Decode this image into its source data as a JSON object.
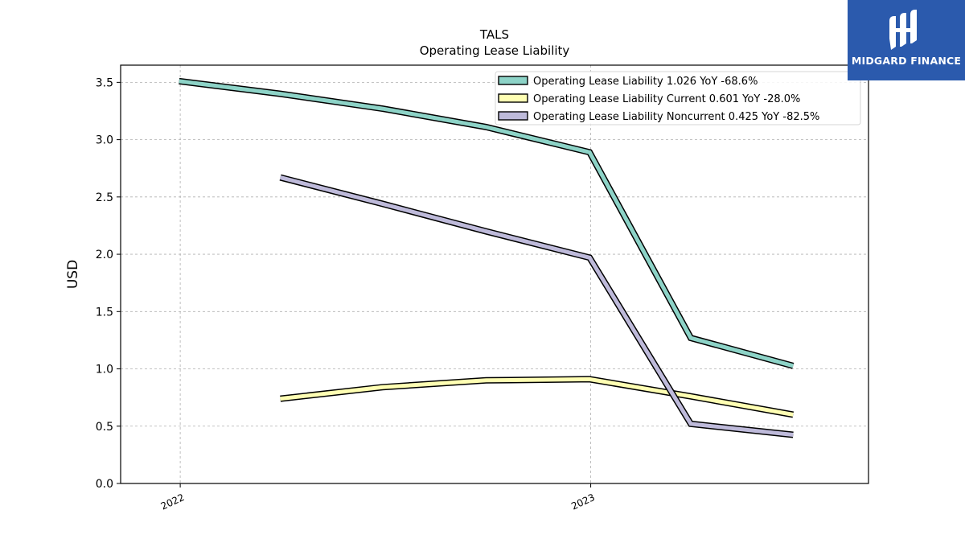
{
  "chart_data": {
    "type": "line",
    "title": "TALS",
    "subtitle": "Operating Lease Liability",
    "ylabel": "USD",
    "xlabel": "",
    "ylim": [
      0,
      3.65
    ],
    "yticks": [
      0.0,
      0.5,
      1.0,
      1.5,
      2.0,
      2.5,
      3.0,
      3.5
    ],
    "xticks": [
      {
        "label": "2022",
        "date": "2022-01-01"
      },
      {
        "label": "2023",
        "date": "2023-01-01"
      }
    ],
    "x_range": [
      "2021-11-09",
      "2023-09-05"
    ],
    "grid": true,
    "legend_position": "top-right",
    "series": [
      {
        "name": "Operating Lease Liability  1.026 YoY -68.6%",
        "color": "#8dd3c7",
        "points": [
          {
            "date": "2021-12-31",
            "value": 3.51
          },
          {
            "date": "2022-03-31",
            "value": 3.4
          },
          {
            "date": "2022-06-30",
            "value": 3.27
          },
          {
            "date": "2022-09-30",
            "value": 3.11
          },
          {
            "date": "2022-12-31",
            "value": 2.89
          },
          {
            "date": "2023-03-31",
            "value": 1.27
          },
          {
            "date": "2023-06-30",
            "value": 1.026
          }
        ]
      },
      {
        "name": "Operating Lease Liability Current  0.601 YoY -28.0%",
        "color": "#ffffb3",
        "points": [
          {
            "date": "2022-03-31",
            "value": 0.74
          },
          {
            "date": "2022-06-30",
            "value": 0.84
          },
          {
            "date": "2022-09-30",
            "value": 0.9
          },
          {
            "date": "2022-12-31",
            "value": 0.91
          },
          {
            "date": "2023-03-31",
            "value": 0.76
          },
          {
            "date": "2023-06-30",
            "value": 0.601
          }
        ]
      },
      {
        "name": "Operating Lease Liability Noncurrent  0.425 YoY -82.5%",
        "color": "#bebada",
        "points": [
          {
            "date": "2022-03-31",
            "value": 2.67
          },
          {
            "date": "2022-06-30",
            "value": 2.44
          },
          {
            "date": "2022-09-30",
            "value": 2.2
          },
          {
            "date": "2022-12-31",
            "value": 1.97
          },
          {
            "date": "2023-03-31",
            "value": 0.52
          },
          {
            "date": "2023-06-30",
            "value": 0.425
          }
        ]
      }
    ]
  },
  "brand": {
    "name": "MIDGARD FINANCE",
    "logo_icon": "midgard-logo-icon",
    "color": "#2b5aad"
  }
}
